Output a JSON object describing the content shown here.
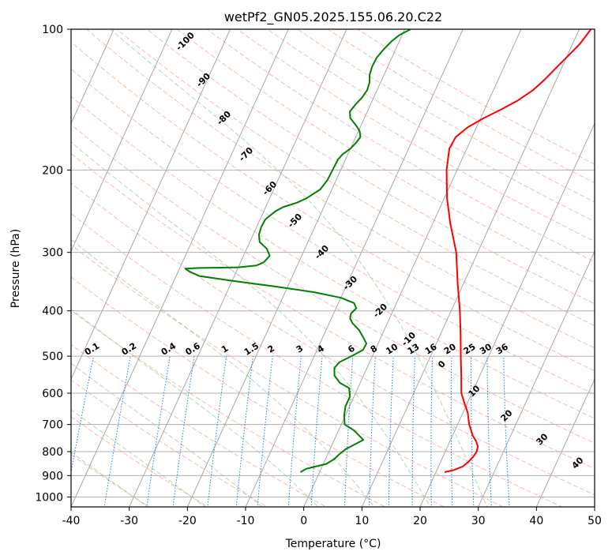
{
  "chart_data": {
    "type": "line",
    "title": "wetPf2_GN05.2025.155.06.20.C22",
    "xlabel": "Temperature (°C)",
    "ylabel": "Pressure (hPa)",
    "xlim": [
      -40,
      50
    ],
    "ylim": [
      1050,
      100
    ],
    "y_scale": "log",
    "x_ticks": [
      -40,
      -30,
      -20,
      -10,
      0,
      10,
      20,
      30,
      40,
      50
    ],
    "y_ticks": [
      100,
      200,
      300,
      400,
      500,
      600,
      700,
      800,
      900,
      1000
    ],
    "skew": true,
    "grid": true,
    "series": [
      {
        "color": "#ff0000",
        "points": [
          [
            21.5,
            885
          ],
          [
            23.0,
            875
          ],
          [
            24.2,
            860
          ],
          [
            24.8,
            840
          ],
          [
            25.2,
            820
          ],
          [
            25.4,
            800
          ],
          [
            25.2,
            780
          ],
          [
            24.5,
            760
          ],
          [
            23.5,
            740
          ],
          [
            22.0,
            700
          ],
          [
            20.8,
            660
          ],
          [
            19.5,
            630
          ],
          [
            18.2,
            600
          ],
          [
            16.8,
            550
          ],
          [
            15.2,
            500
          ],
          [
            13.5,
            450
          ],
          [
            11.5,
            400
          ],
          [
            9.0,
            350
          ],
          [
            6.3,
            300
          ],
          [
            3.0,
            260
          ],
          [
            0.5,
            230
          ],
          [
            -1.8,
            200
          ],
          [
            -3.0,
            180
          ],
          [
            -2.8,
            170
          ],
          [
            -1.5,
            162
          ],
          [
            0.5,
            155
          ],
          [
            3.0,
            148
          ],
          [
            5.0,
            142
          ],
          [
            6.8,
            135
          ],
          [
            8.0,
            128
          ],
          [
            9.5,
            118
          ],
          [
            10.5,
            112
          ],
          [
            11.3,
            107
          ],
          [
            12.0,
            100
          ]
        ]
      },
      {
        "color": "#008000",
        "points": [
          [
            -3.3,
            885
          ],
          [
            -2.5,
            870
          ],
          [
            -1.0,
            860
          ],
          [
            0.5,
            850
          ],
          [
            1.5,
            830
          ],
          [
            2.0,
            810
          ],
          [
            2.7,
            790
          ],
          [
            4.0,
            770
          ],
          [
            5.0,
            755
          ],
          [
            4.0,
            740
          ],
          [
            2.6,
            720
          ],
          [
            0.6,
            700
          ],
          [
            -0.2,
            670
          ],
          [
            -0.7,
            640
          ],
          [
            -0.7,
            610
          ],
          [
            -1.5,
            585
          ],
          [
            -3.5,
            570
          ],
          [
            -5.0,
            550
          ],
          [
            -5.6,
            530
          ],
          [
            -5.2,
            515
          ],
          [
            -3.6,
            500
          ],
          [
            -2.1,
            485
          ],
          [
            -2.0,
            470
          ],
          [
            -3.1,
            455
          ],
          [
            -4.3,
            440
          ],
          [
            -6.0,
            425
          ],
          [
            -6.8,
            415
          ],
          [
            -7.0,
            405
          ],
          [
            -6.5,
            395
          ],
          [
            -7.3,
            385
          ],
          [
            -10.0,
            375
          ],
          [
            -15.0,
            365
          ],
          [
            -22.0,
            355
          ],
          [
            -30.0,
            345
          ],
          [
            -36.0,
            337
          ],
          [
            -38.0,
            330
          ],
          [
            -39.0,
            325
          ],
          [
            -37.0,
            324
          ],
          [
            -30.0,
            323
          ],
          [
            -27.0,
            320
          ],
          [
            -26.0,
            315
          ],
          [
            -25.5,
            305
          ],
          [
            -26.5,
            295
          ],
          [
            -28.3,
            285
          ],
          [
            -29.0,
            275
          ],
          [
            -29.2,
            265
          ],
          [
            -29.1,
            255
          ],
          [
            -28.0,
            245
          ],
          [
            -27.0,
            240
          ],
          [
            -25.0,
            235
          ],
          [
            -23.7,
            230
          ],
          [
            -22.0,
            220
          ],
          [
            -21.5,
            210
          ],
          [
            -21.4,
            200
          ],
          [
            -21.3,
            190
          ],
          [
            -20.9,
            185
          ],
          [
            -20.0,
            180
          ],
          [
            -19.5,
            175
          ],
          [
            -19.2,
            170
          ],
          [
            -19.8,
            165
          ],
          [
            -21.0,
            160
          ],
          [
            -22.4,
            155
          ],
          [
            -23.0,
            150
          ],
          [
            -22.6,
            145
          ],
          [
            -22.0,
            140
          ],
          [
            -21.7,
            135
          ],
          [
            -21.9,
            130
          ],
          [
            -22.5,
            125
          ],
          [
            -22.7,
            120
          ],
          [
            -22.6,
            115
          ],
          [
            -22.0,
            110
          ],
          [
            -21.3,
            106
          ],
          [
            -20.5,
            103
          ],
          [
            -19.0,
            100
          ]
        ]
      }
    ],
    "reference_lines": {
      "dry_adiabats_theta_C": [
        -30,
        -20,
        -10,
        0,
        10,
        20,
        30,
        40,
        50,
        60,
        70,
        80,
        90,
        100,
        110,
        120,
        130,
        140,
        150,
        160,
        170,
        180,
        190,
        200
      ],
      "moist_adiabats_thetaw_C": [
        -30,
        -20,
        -10,
        0,
        10,
        20,
        30
      ],
      "mixing_ratio_g_per_kg": [
        "0.1",
        "0.2",
        "0.4",
        "0.6",
        "1",
        "1.5",
        "2",
        "3",
        "4",
        "6",
        "8",
        "10",
        "13",
        "16",
        "20",
        "25",
        "30",
        "36"
      ],
      "isotherm_labels": [
        "-100",
        "-90",
        "-80",
        "-70",
        "-60",
        "-50",
        "-40",
        "-30",
        "-20",
        "-10",
        "0",
        "10",
        "20",
        "30",
        "40"
      ]
    }
  }
}
